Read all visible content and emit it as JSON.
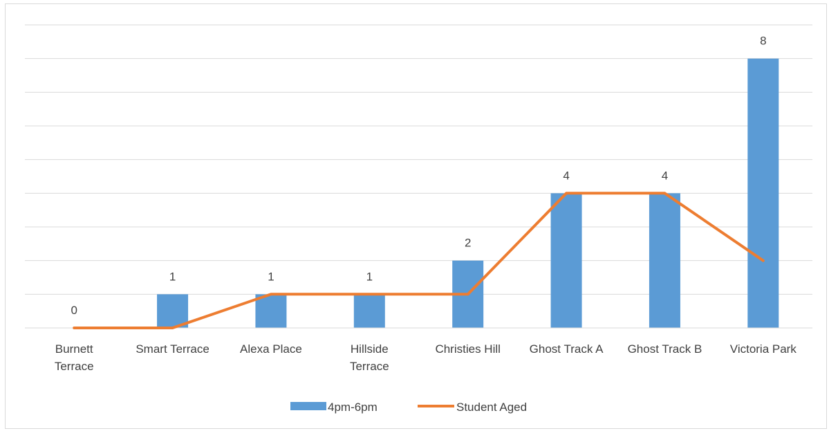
{
  "chart_data": {
    "type": "bar",
    "categories": [
      [
        "Burnett",
        "Terrace"
      ],
      [
        "Smart Terrace"
      ],
      [
        "Alexa Place"
      ],
      [
        "Hillside",
        "Terrace"
      ],
      [
        "Christies Hill"
      ],
      [
        "Ghost Track A"
      ],
      [
        "Ghost Track B"
      ],
      [
        "Victoria Park"
      ]
    ],
    "series": [
      {
        "name": "4pm-6pm",
        "type": "bar",
        "color": "#5b9bd5",
        "values": [
          0,
          1,
          1,
          1,
          2,
          4,
          4,
          8
        ],
        "data_labels": true
      },
      {
        "name": "Student Aged",
        "type": "line",
        "color": "#ed7d31",
        "values": [
          0,
          0,
          1,
          1,
          1,
          4,
          4,
          2
        ],
        "data_labels": false
      }
    ],
    "ylim": [
      0,
      9
    ],
    "grid": true,
    "y_tick_labels": false,
    "legend": "bottom"
  }
}
